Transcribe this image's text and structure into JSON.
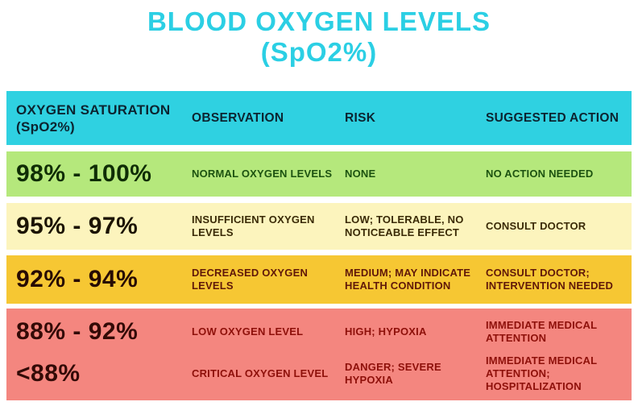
{
  "title": {
    "line1": "BLOOD OXYGEN LEVELS",
    "line2": "(SpO2%)"
  },
  "table": {
    "headers": {
      "saturation": "OXYGEN SATURATION (SpO2%)",
      "observation": "OBSERVATION",
      "risk": "RISK",
      "action": "SUGGESTED ACTION"
    },
    "rows": [
      {
        "range": "98% - 100%",
        "observation": "NORMAL OXYGEN LEVELS",
        "risk": "NONE",
        "action": "NO ACTION NEEDED",
        "bg": "#b5e87c"
      },
      {
        "range": "95% - 97%",
        "observation": "INSUFFICIENT OXYGEN LEVELS",
        "risk": "LOW; TOLERABLE, NO NOTICEABLE EFFECT",
        "action": "CONSULT DOCTOR",
        "bg": "#fcf4bd"
      },
      {
        "range": "92% - 94%",
        "observation": "DECREASED OXYGEN LEVELS",
        "risk": "MEDIUM; MAY INDICATE HEALTH CONDITION",
        "action": "CONSULT DOCTOR; INTERVENTION NEEDED",
        "bg": "#f6c733"
      },
      {
        "range": "88% - 92%",
        "observation": "LOW OXYGEN LEVEL",
        "risk": "HIGH; HYPOXIA",
        "action": "IMMEDIATE MEDICAL ATTENTION",
        "bg": "#f4867f"
      },
      {
        "range": "<88%",
        "observation": "CRITICAL OXYGEN LEVEL",
        "risk": "DANGER; SEVERE HYPOXIA",
        "action": "IMMEDIATE MEDICAL ATTENTION; HOSPITALIZATION",
        "bg": "#f4867f"
      }
    ]
  },
  "colors": {
    "title_text": "#2bcfe4",
    "header_bg": "#2fd1e1",
    "header_text": "#0c2430",
    "row_green_bg": "#b5e87c",
    "row_green_text": "#1c5210",
    "row_paleyellow_bg": "#fcf4bd",
    "row_paleyellow_text": "#3a2a06",
    "row_gold_bg": "#f6c733",
    "row_gold_text": "#601809",
    "row_red_bg": "#f4867f",
    "row_red_text": "#8e100a"
  },
  "chart_data": {
    "type": "table",
    "title": "BLOOD OXYGEN LEVELS (SpO2%)",
    "columns": [
      "OXYGEN SATURATION (SpO2%)",
      "OBSERVATION",
      "RISK",
      "SUGGESTED ACTION"
    ],
    "rows": [
      [
        "98% - 100%",
        "NORMAL OXYGEN LEVELS",
        "NONE",
        "NO ACTION NEEDED"
      ],
      [
        "95% - 97%",
        "INSUFFICIENT OXYGEN LEVELS",
        "LOW; TOLERABLE, NO NOTICEABLE EFFECT",
        "CONSULT DOCTOR"
      ],
      [
        "92% - 94%",
        "DECREASED OXYGEN LEVELS",
        "MEDIUM; MAY INDICATE HEALTH CONDITION",
        "CONSULT DOCTOR; INTERVENTION NEEDED"
      ],
      [
        "88% - 92%",
        "LOW OXYGEN LEVEL",
        "HIGH; HYPOXIA",
        "IMMEDIATE MEDICAL ATTENTION"
      ],
      [
        "<88%",
        "CRITICAL OXYGEN LEVEL",
        "DANGER; SEVERE HYPOXIA",
        "IMMEDIATE MEDICAL ATTENTION; HOSPITALIZATION"
      ]
    ],
    "row_band_colors": [
      "#b5e87c",
      "#fcf4bd",
      "#f6c733",
      "#f4867f",
      "#f4867f"
    ],
    "legend_position": "none",
    "grid": false
  }
}
